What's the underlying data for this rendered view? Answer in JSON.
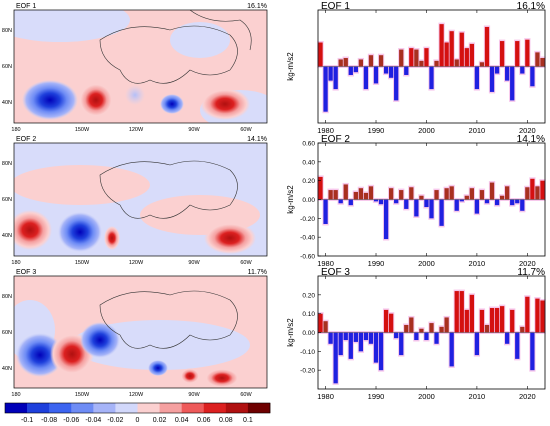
{
  "colorbar": {
    "ticks": [
      "-0.1",
      "-0.08",
      "-0.06",
      "-0.04",
      "-0.02",
      "0",
      "0.02",
      "0.04",
      "0.06",
      "0.08",
      "0.1"
    ],
    "colors": [
      "#0000b8",
      "#1e40dc",
      "#3c64f0",
      "#6e8cf5",
      "#a6b4f8",
      "#d2d8fb",
      "#fbd0d0",
      "#f5a0a0",
      "#ee5a5a",
      "#dc2020",
      "#b01010",
      "#6e0000"
    ]
  },
  "maps": [
    {
      "label": "EOF 1",
      "pct": "16.1%",
      "lon_ticks": [
        "180",
        "150W",
        "120W",
        "90W",
        "60W"
      ],
      "lat_ticks": [
        "80N",
        "60N",
        "40N"
      ]
    },
    {
      "label": "EOF 2",
      "pct": "14.1%",
      "lon_ticks": [
        "180",
        "150W",
        "120W",
        "90W",
        "60W"
      ],
      "lat_ticks": [
        "80N",
        "60N",
        "40N"
      ]
    },
    {
      "label": "EOF 3",
      "pct": "11.7%",
      "lon_ticks": [
        "180",
        "150W",
        "120W",
        "90W",
        "60W"
      ],
      "lat_ticks": [
        "80N",
        "60N",
        "40N"
      ]
    }
  ],
  "chart_data": [
    {
      "type": "bar",
      "title": "EOF 1",
      "pct": "16.1%",
      "ylabel": "kg-m/s2",
      "ylim": [
        -0.4,
        0.4
      ],
      "y_ticks": [],
      "x_ticks": [
        1980,
        1990,
        2000,
        2010,
        2020
      ],
      "x": [
        1979,
        1980,
        1981,
        1982,
        1983,
        1984,
        1985,
        1986,
        1987,
        1988,
        1989,
        1990,
        1991,
        1992,
        1993,
        1994,
        1995,
        1996,
        1997,
        1998,
        1999,
        2000,
        2001,
        2002,
        2003,
        2004,
        2005,
        2006,
        2007,
        2008,
        2009,
        2010,
        2011,
        2012,
        2013,
        2014,
        2015,
        2016,
        2017,
        2018,
        2019,
        2020,
        2021,
        2022,
        2023
      ],
      "values": [
        0.17,
        -0.32,
        -0.1,
        -0.16,
        0.05,
        0.06,
        -0.06,
        -0.04,
        0.05,
        -0.16,
        0.08,
        -0.12,
        0.08,
        -0.05,
        -0.08,
        -0.24,
        0.12,
        -0.06,
        0.13,
        0.12,
        0.04,
        0.13,
        -0.16,
        0.04,
        0.3,
        0.17,
        0.25,
        0.05,
        0.24,
        0.13,
        0.16,
        -0.16,
        0.03,
        0.28,
        -0.18,
        -0.05,
        0.18,
        -0.1,
        -0.24,
        0.18,
        -0.05,
        0.19,
        -0.14,
        0.1,
        0.06
      ]
    },
    {
      "type": "bar",
      "title": "EOF 2",
      "pct": "14.1%",
      "ylabel": "kg-m/s2",
      "ylim": [
        -0.6,
        0.6
      ],
      "y_ticks": [
        "0.60",
        "0.40",
        "0.20",
        "0.00",
        "-0.20",
        "-0.40",
        "-0.60"
      ],
      "x_ticks": [
        1980,
        1990,
        2000,
        2010,
        2020
      ],
      "x": [
        1979,
        1980,
        1981,
        1982,
        1983,
        1984,
        1985,
        1986,
        1987,
        1988,
        1989,
        1990,
        1991,
        1992,
        1993,
        1994,
        1995,
        1996,
        1997,
        1998,
        1999,
        2000,
        2001,
        2002,
        2003,
        2004,
        2005,
        2006,
        2007,
        2008,
        2009,
        2010,
        2011,
        2012,
        2013,
        2014,
        2015,
        2016,
        2017,
        2018,
        2019,
        2020,
        2021,
        2022,
        2023
      ],
      "values": [
        0.24,
        -0.26,
        0.1,
        0.1,
        -0.04,
        0.16,
        -0.06,
        0.08,
        0.12,
        0.07,
        0.14,
        -0.02,
        -0.05,
        -0.42,
        0.12,
        -0.04,
        0.1,
        -0.1,
        0.13,
        -0.18,
        0.04,
        -0.08,
        -0.2,
        0.1,
        -0.28,
        0.12,
        0.14,
        -0.12,
        -0.02,
        0.04,
        0.12,
        -0.15,
        0.1,
        -0.04,
        0.18,
        -0.06,
        0.04,
        0.14,
        -0.06,
        -0.04,
        -0.12,
        0.13,
        0.22,
        0.14,
        0.2
      ]
    },
    {
      "type": "bar",
      "title": "EOF 3",
      "pct": "11.7%",
      "ylabel": "kg-m/s2",
      "ylim": [
        -0.3,
        0.3
      ],
      "y_ticks": [
        "0.20",
        "0.10",
        "0.00",
        "-0.10",
        "-0.20"
      ],
      "x_ticks": [
        1980,
        1990,
        2000,
        2010,
        2020
      ],
      "x": [
        1979,
        1980,
        1981,
        1982,
        1983,
        1984,
        1985,
        1986,
        1987,
        1988,
        1989,
        1990,
        1991,
        1992,
        1993,
        1994,
        1995,
        1996,
        1997,
        1998,
        1999,
        2000,
        2001,
        2002,
        2003,
        2004,
        2005,
        2006,
        2007,
        2008,
        2009,
        2010,
        2011,
        2012,
        2013,
        2014,
        2015,
        2016,
        2017,
        2018,
        2019,
        2020,
        2021,
        2022,
        2023
      ],
      "values": [
        0.1,
        0.06,
        -0.06,
        -0.27,
        -0.12,
        -0.04,
        -0.14,
        -0.05,
        -0.1,
        -0.04,
        -0.06,
        -0.16,
        -0.2,
        0.12,
        0.1,
        -0.03,
        -0.12,
        0.04,
        0.08,
        -0.04,
        0.02,
        -0.04,
        0.05,
        -0.06,
        0.03,
        0.08,
        -0.18,
        0.22,
        0.22,
        0.12,
        0.2,
        -0.12,
        0.12,
        0.04,
        0.13,
        0.13,
        0.14,
        -0.06,
        0.12,
        -0.14,
        0.03,
        0.19,
        -0.2,
        0.18,
        0.17
      ]
    }
  ]
}
